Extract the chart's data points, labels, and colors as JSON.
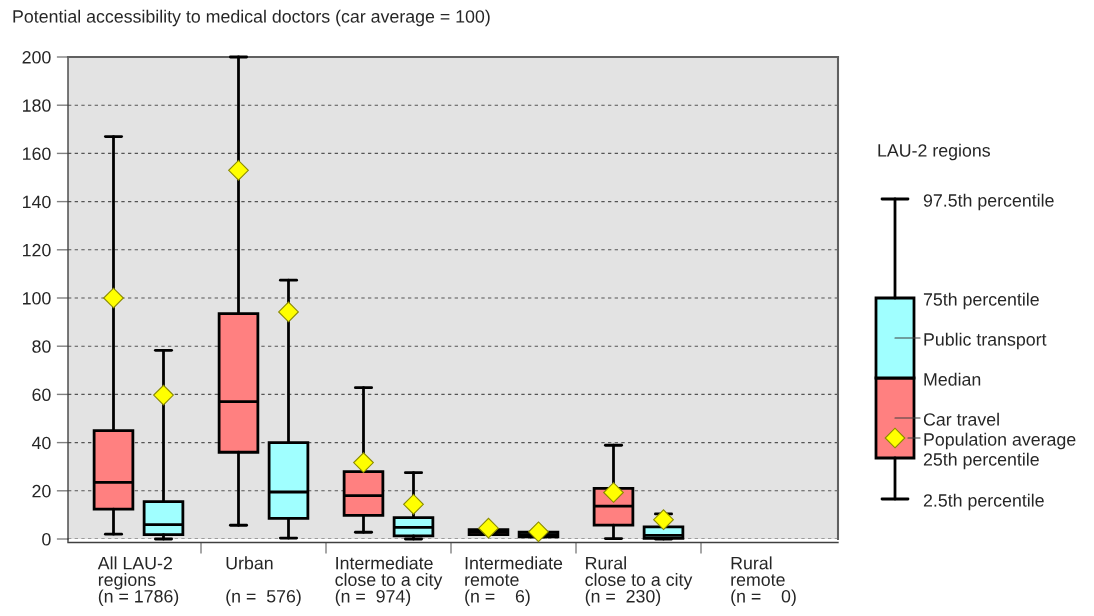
{
  "chart_data": {
    "type": "box",
    "title": "Potential accessibility to medical doctors (car average = 100)",
    "legend_title": "LAU-2 regions",
    "categories": [
      "All LAU-2\nregions\n(n = 1786)",
      "Urban\n\n(n =  576)",
      "Intermediate\nclose to a city\n(n =  974)",
      "Intermediate\nremote\n(n =    6)",
      "Rural\nclose to a city\n(n =  230)",
      "Rural\nremote\n(n =    0)"
    ],
    "series": [
      {
        "name": "Car travel",
        "color": "#ff8080",
        "boxes": [
          {
            "low": 2,
            "q1": 12.4,
            "median": 23.5,
            "q3": 45,
            "high": 167,
            "mean": 100
          },
          {
            "low": 5.7,
            "q1": 36,
            "median": 57,
            "q3": 93.5,
            "high": 200,
            "mean": 153
          },
          {
            "low": 2.8,
            "q1": 9.8,
            "median": 18,
            "q3": 28,
            "high": 62.8,
            "mean": 31.7
          },
          {
            "low": 1.8,
            "q1": 1.8,
            "median": 2.8,
            "q3": 3.9,
            "high": 3.9,
            "mean": 4.5
          },
          {
            "low": 0.2,
            "q1": 5.8,
            "median": 13.6,
            "q3": 21,
            "high": 38.9,
            "mean": 19.3
          },
          null
        ]
      },
      {
        "name": "Public transport",
        "color": "#a0ffff",
        "boxes": [
          {
            "low": 0,
            "q1": 1.8,
            "median": 6,
            "q3": 15.5,
            "high": 78.3,
            "mean": 59.7
          },
          {
            "low": 0.4,
            "q1": 8.6,
            "median": 19.5,
            "q3": 40,
            "high": 107.4,
            "mean": 94.2
          },
          {
            "low": 0,
            "q1": 1.3,
            "median": 4.8,
            "q3": 8.9,
            "high": 27.5,
            "mean": 14.4
          },
          {
            "low": 0.9,
            "q1": 0.9,
            "median": 1.8,
            "q3": 2.8,
            "high": 2.8,
            "mean": 3
          },
          {
            "low": 0,
            "q1": 0.3,
            "median": 1.5,
            "q3": 5,
            "high": 10.4,
            "mean": 8
          },
          null
        ]
      }
    ],
    "ylim": [
      0,
      200
    ],
    "yticks": [
      0,
      20,
      40,
      60,
      80,
      100,
      120,
      140,
      160,
      180,
      200
    ],
    "grid": "y",
    "legend": "right",
    "annotations": [
      "97.5th percentile",
      "75th percentile",
      "Median",
      "Population average",
      "25th percentile",
      "2.5th percentile"
    ]
  }
}
